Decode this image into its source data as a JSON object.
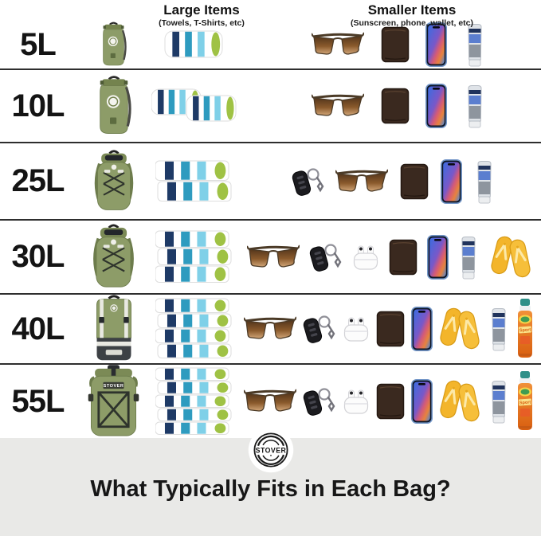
{
  "header": {
    "large_items": {
      "title": "Large Items",
      "subtitle": "(Towels, T-Shirts, etc)"
    },
    "smaller_items": {
      "title": "Smaller Items",
      "subtitle": "(Sunscreen, phone, wallet, etc)"
    }
  },
  "rows": [
    {
      "size": "5L",
      "bag": "small-dry-bag",
      "towels": {
        "style": "single",
        "count": 1
      },
      "items": [
        "sunglasses",
        "wallet",
        "iphone",
        "sunscreen-tube"
      ]
    },
    {
      "size": "10L",
      "bag": "dry-bag",
      "towels": {
        "style": "pair",
        "count": 2
      },
      "items": [
        "sunglasses",
        "wallet",
        "iphone",
        "sunscreen-tube"
      ]
    },
    {
      "size": "25L",
      "bag": "backpack",
      "towels": {
        "style": "stack",
        "count": 2
      },
      "items": [
        "car-keys",
        "sunglasses",
        "wallet",
        "iphone",
        "sunscreen-tube"
      ]
    },
    {
      "size": "30L",
      "bag": "backpack",
      "towels": {
        "style": "stack",
        "count": 3
      },
      "items": [
        "sunglasses",
        "car-keys",
        "airpods",
        "wallet",
        "iphone",
        "sunscreen-tube",
        "flip-flops"
      ]
    },
    {
      "size": "40L",
      "bag": "cooler-backpack",
      "towels": {
        "style": "stack",
        "count": 4
      },
      "items": [
        "sunglasses",
        "car-keys",
        "airpods",
        "wallet",
        "iphone",
        "flip-flops",
        "sunscreen-tube",
        "spray-sunscreen"
      ]
    },
    {
      "size": "55L",
      "bag": "rolltop-backpack",
      "towels": {
        "style": "stack",
        "count": 5
      },
      "items": [
        "sunglasses",
        "car-keys",
        "airpods",
        "wallet",
        "iphone",
        "flip-flops",
        "sunscreen-tube",
        "spray-sunscreen"
      ]
    }
  ],
  "icons": {
    "sunscreen_tube_brand": "Neutrogena",
    "spray_sunscreen_label": "Sport"
  },
  "footer": {
    "brand": "STOVER",
    "heading": "What Typically Fits in Each Bag?"
  },
  "colors": {
    "bag_olive": "#8d9c68",
    "bag_olive_dark": "#74834e",
    "bag_charcoal": "#3d4145",
    "towel_navy": "#1e3a66",
    "towel_teal": "#2e9bbf",
    "towel_sky": "#7fd0e8",
    "towel_green": "#9fc244",
    "flipflop_yellow": "#f3b52b",
    "spray_orange": "#e87a22",
    "phone_blue": "#7396c8",
    "footer_bg": "#e9e9e7",
    "divider": "#2e2e2e"
  }
}
